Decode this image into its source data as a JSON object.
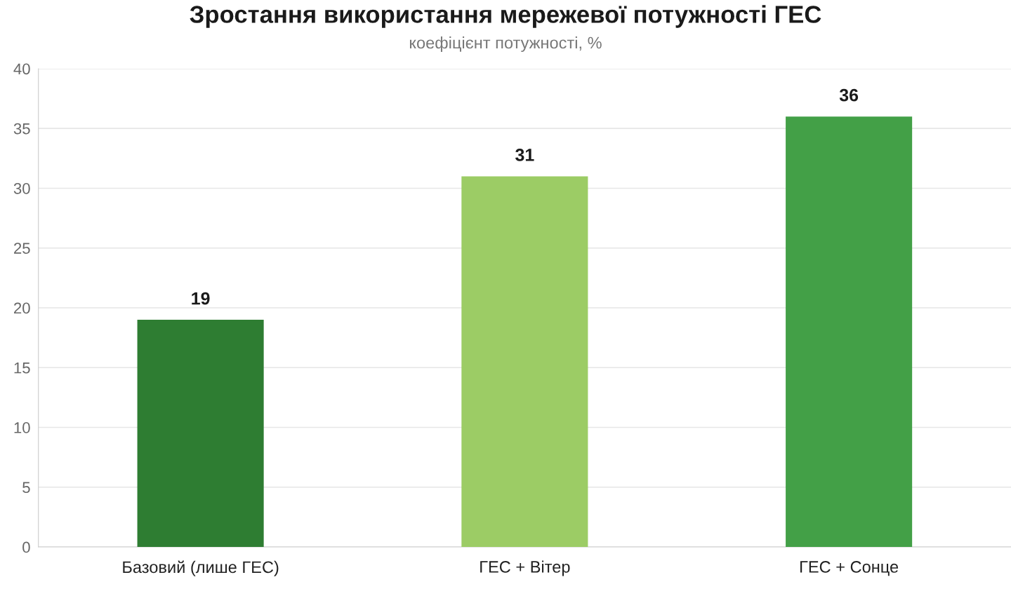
{
  "chart_data": {
    "type": "bar",
    "title": "Зростання використання мережевої потужності ГЕС",
    "subtitle": "коефіцієнт потужності, %",
    "categories": [
      "Базовий (лише ГЕС)",
      "ГЕС + Вітер",
      "ГЕС + Сонце"
    ],
    "values": [
      19,
      31,
      36
    ],
    "colors": [
      "#2e7d32",
      "#9ccc65",
      "#43a047"
    ],
    "ylim": [
      0,
      40
    ],
    "yticks": [
      0,
      5,
      10,
      15,
      20,
      25,
      30,
      35,
      40
    ],
    "grid": "y",
    "data_labels": true
  }
}
